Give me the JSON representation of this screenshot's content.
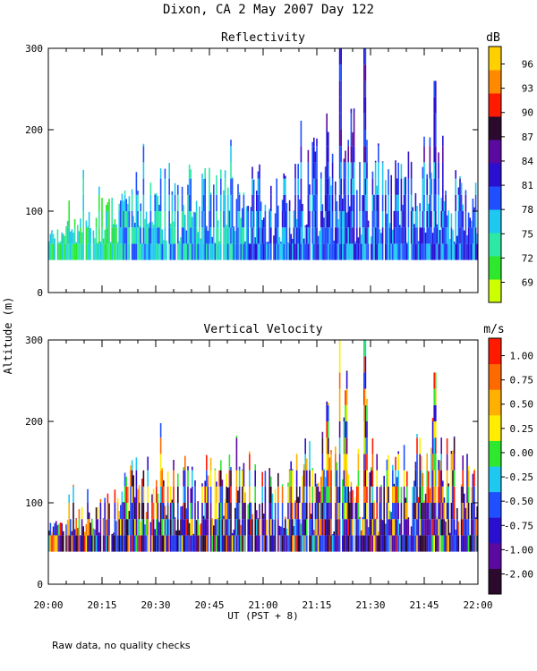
{
  "figure": {
    "title": "Dixon, CA  2 May 2007  Day 122",
    "ylabel": "Altitude (m)",
    "xlabel": "UT  (PST + 8)",
    "footnote": "Raw data, no quality checks"
  },
  "colors": {
    "reflectivity": [
      "#ccff00",
      "#2ee82e",
      "#2ee8a6",
      "#1ec8f0",
      "#1f4fff",
      "#2a0fd0",
      "#5a0aa0",
      "#2b0a2e",
      "#ff1a00",
      "#ff8a00",
      "#ffd000"
    ],
    "velocity": [
      "#2b0a2e",
      "#5a0aa0",
      "#2a0fd0",
      "#1f4fff",
      "#1ec8f0",
      "#2ee82e",
      "#ffee00",
      "#ffb000",
      "#ff6a00",
      "#ff1a00"
    ]
  },
  "chart_data": [
    {
      "type": "heatmap",
      "title": "Reflectivity",
      "x_range": [
        "20:00",
        "22:00"
      ],
      "x_ticks": [
        "20:00",
        "20:15",
        "20:30",
        "20:45",
        "21:00",
        "21:15",
        "21:30",
        "21:45",
        "22:00"
      ],
      "x_tick_minutes": [
        0,
        15,
        30,
        45,
        60,
        75,
        90,
        105,
        120
      ],
      "ylim": [
        0,
        300
      ],
      "y_ticks": [
        0,
        100,
        200,
        300
      ],
      "y_tick_labels": [
        "0",
        "100",
        "200",
        "300"
      ],
      "min_altitude": 40,
      "colorbar": {
        "unit": "dB",
        "range": [
          68,
          98
        ],
        "labels": [
          "96",
          "93",
          "90",
          "87",
          "84",
          "81",
          "78",
          "75",
          "72",
          "69"
        ],
        "values": [
          96,
          93,
          90,
          87,
          84,
          81,
          78,
          75,
          72,
          69
        ]
      },
      "echo_top_profile": {
        "minutes": [
          0,
          6,
          12,
          18,
          24,
          30,
          36,
          42,
          48,
          54,
          60,
          66,
          72,
          78,
          84,
          90,
          96,
          102,
          108,
          114,
          120
        ],
        "altitude_m": [
          80,
          90,
          100,
          120,
          160,
          160,
          160,
          160,
          160,
          160,
          170,
          160,
          170,
          230,
          240,
          190,
          160,
          180,
          220,
          170,
          140
        ]
      },
      "peak_echo_tops": [
        {
          "minute": 81.5,
          "altitude_m": 300
        },
        {
          "minute": 88.5,
          "altitude_m": 300
        },
        {
          "minute": 108.0,
          "altitude_m": 260
        }
      ]
    },
    {
      "type": "heatmap",
      "title": "Vertical Velocity",
      "x_range": [
        "20:00",
        "22:00"
      ],
      "x_ticks": [
        "20:00",
        "20:15",
        "20:30",
        "20:45",
        "21:00",
        "21:15",
        "21:30",
        "21:45",
        "22:00"
      ],
      "x_tick_minutes": [
        0,
        15,
        30,
        45,
        60,
        75,
        90,
        105,
        120
      ],
      "ylim": [
        0,
        300
      ],
      "y_ticks": [
        0,
        100,
        200,
        300
      ],
      "y_tick_labels": [
        "0",
        "100",
        "200",
        "300"
      ],
      "min_altitude": 40,
      "colorbar": {
        "unit": "m/s",
        "range": [
          -2.25,
          1.25
        ],
        "labels": [
          "1.00",
          "0.75",
          "0.50",
          "0.25",
          "0.00",
          "-0.25",
          "-0.50",
          "-0.75",
          "-1.00",
          "-2.00"
        ],
        "values": [
          1.0,
          0.75,
          0.5,
          0.25,
          0.0,
          -0.25,
          -0.5,
          -0.75,
          -1.0,
          -2.0
        ]
      },
      "echo_top_profile": {
        "minutes": [
          0,
          6,
          12,
          18,
          24,
          30,
          36,
          42,
          48,
          54,
          60,
          66,
          72,
          78,
          84,
          90,
          96,
          102,
          108,
          114,
          120
        ],
        "altitude_m": [
          80,
          90,
          100,
          120,
          160,
          160,
          160,
          160,
          160,
          160,
          170,
          160,
          170,
          230,
          240,
          190,
          160,
          180,
          220,
          170,
          140
        ]
      },
      "peak_echo_tops": [
        {
          "minute": 81.5,
          "altitude_m": 300
        },
        {
          "minute": 88.5,
          "altitude_m": 300
        },
        {
          "minute": 108.0,
          "altitude_m": 260
        }
      ]
    }
  ]
}
